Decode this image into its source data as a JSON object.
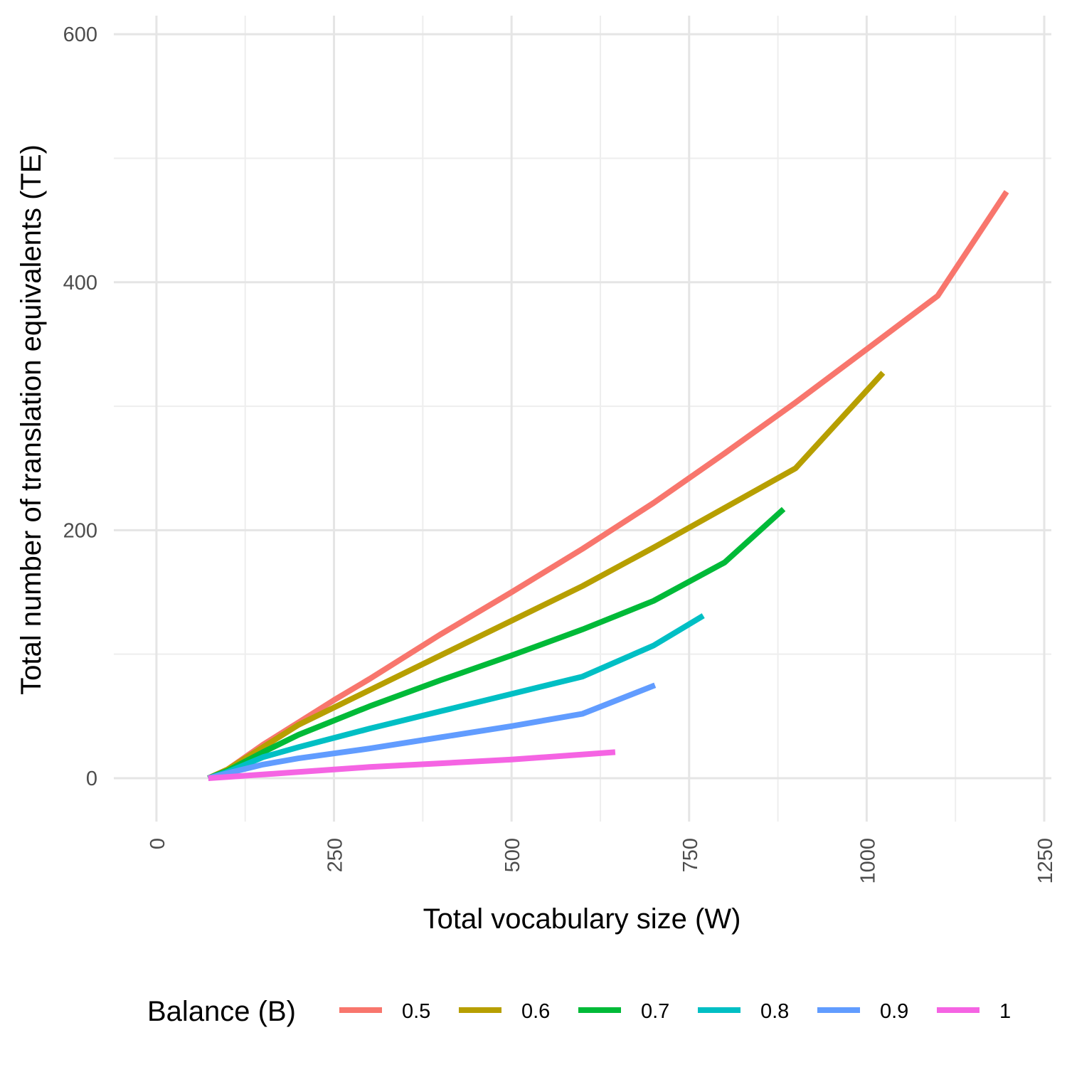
{
  "chart_data": {
    "type": "line",
    "title": "",
    "xlabel": "Total vocabulary size (W)",
    "ylabel": "Total number of translation equivalents (TE)",
    "xlim": [
      -60,
      1260
    ],
    "ylim": [
      -35,
      615
    ],
    "x_ticks": [
      0,
      250,
      500,
      750,
      1000,
      1250
    ],
    "x_tick_labels": [
      "0",
      "250",
      "500",
      "750",
      "1000",
      "1250"
    ],
    "x_minor_ticks": [
      125,
      375,
      625,
      875,
      1125
    ],
    "y_ticks": [
      0,
      200,
      400,
      600
    ],
    "y_tick_labels": [
      "0",
      "200",
      "400",
      "600"
    ],
    "y_minor_ticks": [
      100,
      300,
      500
    ],
    "x_tick_label_rotation": -90,
    "grid": true,
    "legend": {
      "title": "Balance (B)",
      "position": "bottom"
    },
    "series": [
      {
        "name": "0.5",
        "color": "#F8766D",
        "x": [
          73,
          100,
          150,
          200,
          250,
          300,
          400,
          500,
          600,
          700,
          800,
          900,
          1000,
          1100,
          1197
        ],
        "y": [
          0,
          7,
          27,
          45,
          63,
          80,
          116,
          150,
          185,
          222,
          262,
          303,
          346,
          389,
          473
        ]
      },
      {
        "name": "0.6",
        "color": "#B79F00",
        "x": [
          73,
          100,
          150,
          200,
          250,
          300,
          400,
          500,
          600,
          700,
          800,
          900,
          1023
        ],
        "y": [
          0,
          7,
          25,
          43,
          57,
          71,
          99,
          127,
          155,
          186,
          218,
          250,
          327
        ]
      },
      {
        "name": "0.7",
        "color": "#00BA38",
        "x": [
          73,
          100,
          150,
          200,
          300,
          400,
          500,
          600,
          700,
          800,
          883
        ],
        "y": [
          0,
          6,
          21,
          35,
          58,
          79,
          99,
          120,
          143,
          174,
          217
        ]
      },
      {
        "name": "0.8",
        "color": "#00BFC4",
        "x": [
          73,
          100,
          150,
          200,
          300,
          400,
          500,
          600,
          700,
          770
        ],
        "y": [
          0,
          5,
          17,
          25,
          40,
          54,
          68,
          82,
          107,
          131
        ]
      },
      {
        "name": "0.9",
        "color": "#619CFF",
        "x": [
          73,
          100,
          150,
          200,
          300,
          400,
          500,
          600,
          702
        ],
        "y": [
          0,
          4,
          11,
          16,
          24,
          33,
          42,
          52,
          75
        ]
      },
      {
        "name": "1",
        "color": "#F564E3",
        "x": [
          73,
          100,
          200,
          300,
          400,
          500,
          646
        ],
        "y": [
          0,
          1,
          5,
          9,
          12,
          15,
          21
        ]
      }
    ]
  }
}
